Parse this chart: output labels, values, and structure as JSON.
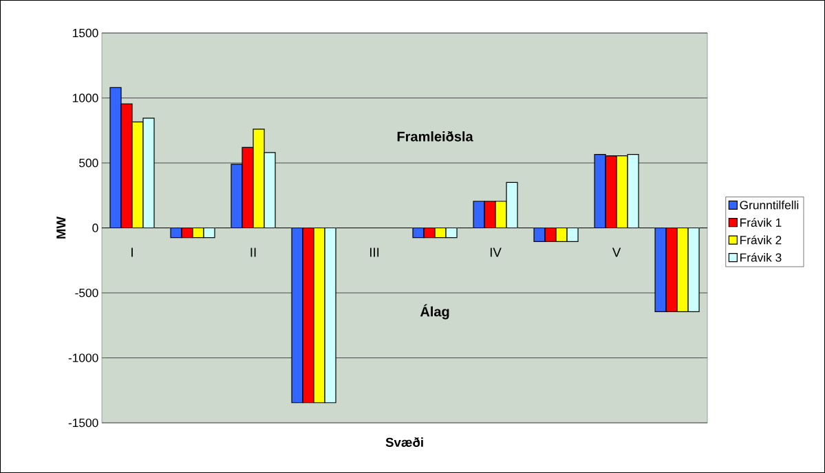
{
  "chart_data": {
    "type": "bar",
    "xlabel": "Svæði",
    "ylabel": "MW",
    "categories": [
      "I",
      null,
      "II",
      null,
      "III",
      null,
      "IV",
      null,
      "V",
      null
    ],
    "series": [
      {
        "name": "Grunntilfelli",
        "color": "#3366ff",
        "values": [
          1080,
          -75,
          490,
          -1345,
          null,
          -75,
          205,
          -105,
          565,
          -645
        ]
      },
      {
        "name": "Frávik 1",
        "color": "#ff0000",
        "values": [
          955,
          -75,
          620,
          -1345,
          null,
          -75,
          205,
          -105,
          555,
          -645
        ]
      },
      {
        "name": "Frávik 2",
        "color": "#ffff00",
        "values": [
          815,
          -75,
          760,
          -1345,
          null,
          -75,
          205,
          -105,
          555,
          -645
        ]
      },
      {
        "name": "Frávik 3",
        "color": "#ccffff",
        "values": [
          845,
          -75,
          580,
          -1345,
          null,
          -75,
          350,
          -105,
          565,
          -645
        ]
      }
    ],
    "ylim": [
      -1500,
      1500
    ],
    "yticks": [
      -1500,
      -1000,
      -500,
      0,
      500,
      1000,
      1500
    ],
    "grid": "y",
    "legend": "right",
    "annotations": [
      "Framleiðsla",
      "Álag"
    ]
  }
}
